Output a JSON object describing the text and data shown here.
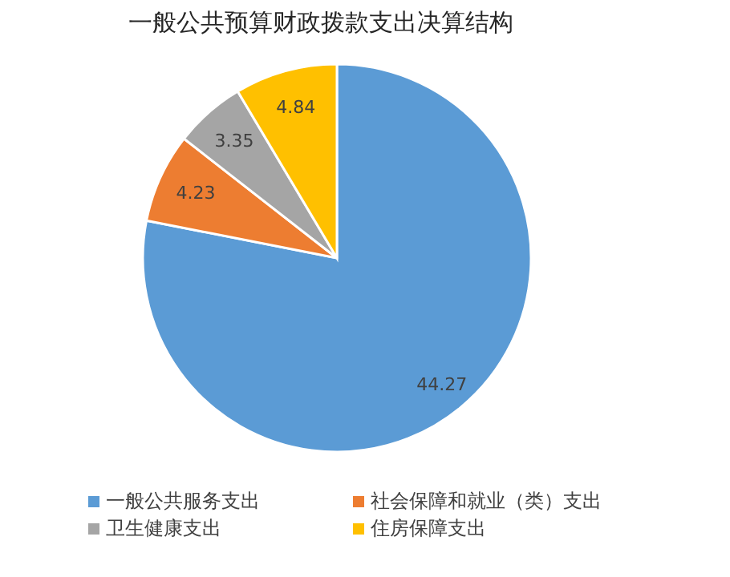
{
  "chart_data": {
    "type": "pie",
    "title": "一般公共预算财政拨款支出决算结构",
    "categories": [
      "一般公共服务支出",
      "社会保障和就业（类）支出",
      "卫生健康支出",
      "住房保障支出"
    ],
    "values": [
      44.27,
      4.23,
      3.35,
      4.84
    ],
    "colors": [
      "#5b9bd5",
      "#ed7d31",
      "#a5a5a5",
      "#ffc000"
    ],
    "data_labels": true,
    "legend": "bottom"
  }
}
